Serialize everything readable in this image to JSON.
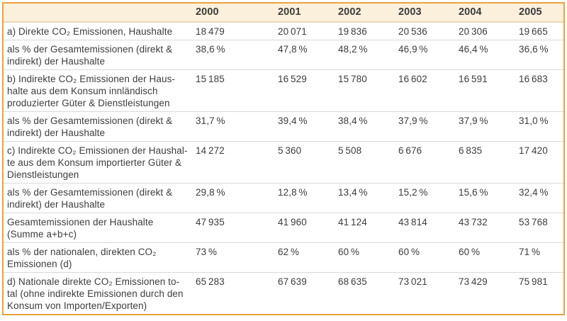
{
  "colors": {
    "frame_border": "#e8a23c",
    "header_background": "#faf0db",
    "header_divider": "#e9d9b8",
    "row_divider": "#d9d9d9",
    "text": "#3c3c3c"
  },
  "chart_data": {
    "type": "table",
    "title": "",
    "columns": [
      "2000",
      "2001",
      "2002",
      "2003",
      "2004",
      "2005"
    ],
    "corner_label": "",
    "rows": [
      {
        "label": "a) Direkte CO₂ Emissionen, Haushalte",
        "values": [
          "18 479",
          "20 071",
          "19 836",
          "20 536",
          "20 306",
          "19 665"
        ]
      },
      {
        "label": "als % der Gesamtemissionen (direkt &\nindirekt) der Haushalte",
        "values": [
          "38,6 %",
          "47,8 %",
          "48,2 %",
          "46,9 %",
          "46,4 %",
          "36,6 %"
        ]
      },
      {
        "label": "b) Indirekte CO₂ Emissionen der Haus-\nhalte aus dem Konsum innländisch\nproduzierter Güter & Dienstleistungen",
        "values": [
          "15 185",
          "16 529",
          "15 780",
          "16 602",
          "16 591",
          "16 683"
        ]
      },
      {
        "label": "als % der Gesamtemissionen (direkt &\nindirekt) der Haushalte",
        "values": [
          "31,7 %",
          "39,4 %",
          "38,4 %",
          "37,9 %",
          "37,9 %",
          "31,0 %"
        ]
      },
      {
        "label": "c) Indirekte CO₂ Emissionen der Haushal-\nte aus dem Konsum importierter Güter &\nDienstleistungen",
        "values": [
          "14 272",
          "5 360",
          "5 508",
          "6 676",
          "6 835",
          "17 420"
        ]
      },
      {
        "label": "als % der Gesamtemissionen (direkt &\nindirekt) der Haushalte",
        "values": [
          "29,8 %",
          "12,8 %",
          "13,4 %",
          "15,2 %",
          "15,6 %",
          "32,4 %"
        ]
      },
      {
        "label": "Gesamtemissionen der Haushalte\n(Summe a+b+c)",
        "values": [
          "47 935",
          "41 960",
          "41 124",
          "43 814",
          "43 732",
          "53 768"
        ]
      },
      {
        "label": "als % der nationalen, direkten CO₂\nEmissionen (d)",
        "values": [
          "73 %",
          "62 %",
          "60 %",
          "60 %",
          "60 %",
          "71 %"
        ]
      },
      {
        "label": "d) Nationale direkte CO₂ Emissionen to-\ntal (ohne indirekte Emissionen durch den\nKonsum von Importen/Exporten)",
        "values": [
          "65 283",
          "67 639",
          "68 635",
          "73 021",
          "73 429",
          "75 981"
        ]
      }
    ]
  }
}
